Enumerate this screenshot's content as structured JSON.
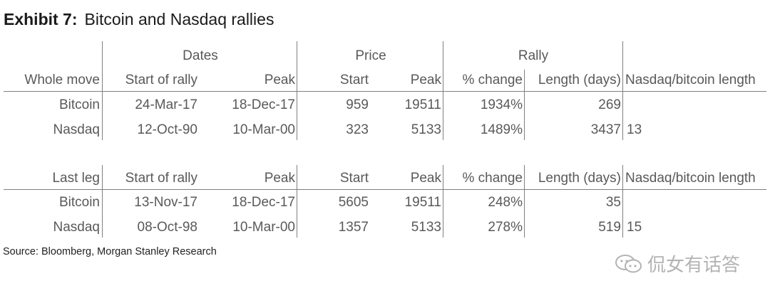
{
  "title": {
    "bold": "Exhibit 7:",
    "rest": "Bitcoin and Nasdaq rallies"
  },
  "groups": {
    "dates": "Dates",
    "price": "Price",
    "rally": "Rally"
  },
  "sections": [
    {
      "header": [
        "Whole move",
        "Start of rally",
        "Peak",
        "Start",
        "Peak",
        "% change",
        "Length (days)",
        "Nasdaq/bitcoin length"
      ],
      "rows": [
        [
          "Bitcoin",
          "24-Mar-17",
          "18-Dec-17",
          "959",
          "19511",
          "1934%",
          "269",
          ""
        ],
        [
          "Nasdaq",
          "12-Oct-90",
          "10-Mar-00",
          "323",
          "5133",
          "1489%",
          "3437",
          "13"
        ]
      ]
    },
    {
      "header": [
        "Last leg",
        "Start of rally",
        "Peak",
        "Start",
        "Peak",
        "% change",
        "Length (days)",
        "Nasdaq/bitcoin length"
      ],
      "rows": [
        [
          "Bitcoin",
          "13-Nov-17",
          "18-Dec-17",
          "5605",
          "19511",
          "248%",
          "35",
          ""
        ],
        [
          "Nasdaq",
          "08-Oct-98",
          "10-Mar-00",
          "1357",
          "5133",
          "278%",
          "519",
          "15"
        ]
      ]
    }
  ],
  "source": "Source: Bloomberg, Morgan Stanley Research",
  "watermark": {
    "text": "侃女有话答",
    "icon": "chat-bubble-icon"
  }
}
